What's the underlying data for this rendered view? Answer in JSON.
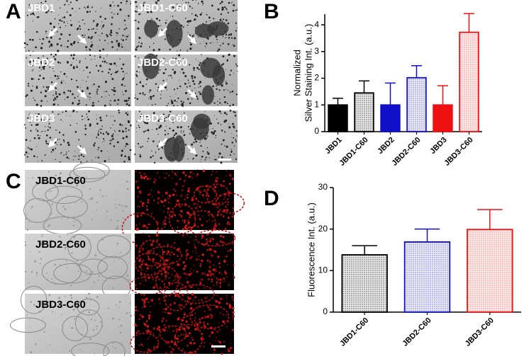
{
  "panel_labels": [
    "A",
    "B",
    "C",
    "D"
  ],
  "panel_a_labels": [
    "JBD1",
    "JBD1-C60",
    "JBD2",
    "JBD2-C60",
    "JBD3",
    "JBD3-C60"
  ],
  "panel_c_labels": [
    "JBD1-C60",
    "JBD2-C60",
    "JBD3-C60"
  ],
  "chart_data": [
    {
      "type": "bar",
      "ylabel": [
        "Normalized",
        "Silver Staining Int. (a.u.)"
      ],
      "categories": [
        "JBD1",
        "JBD1-C60",
        "JBD2",
        "JBD2-C60",
        "JBD3",
        "JBD3-C60"
      ],
      "values": [
        1,
        1.45,
        1,
        2.02,
        1,
        3.72
      ],
      "errors": [
        0.25,
        0.45,
        0.82,
        0.45,
        0.72,
        0.7
      ],
      "colors": [
        "#000000",
        "#000000",
        "#1010c8",
        "#1010c8",
        "#ee1111",
        "#ee1111"
      ],
      "fills": [
        "solid",
        "hatched",
        "solid",
        "hatched",
        "solid",
        "hatched"
      ],
      "ylim": [
        0,
        4.4
      ],
      "yticks": [
        0,
        1,
        2,
        3,
        4
      ]
    },
    {
      "type": "bar",
      "ylabel": [
        "Fluorescence Int. (a.u.)"
      ],
      "categories": [
        "JBD1-C60",
        "JBD2-C60",
        "JBD3-C60"
      ],
      "values": [
        13.8,
        16.9,
        19.9
      ],
      "errors": [
        2.2,
        3.1,
        4.8
      ],
      "colors": [
        "#000000",
        "#1010c8",
        "#ee1111"
      ],
      "fills": [
        "hatched",
        "hatched",
        "hatched"
      ],
      "ylim": [
        0,
        30
      ],
      "yticks": [
        0,
        10,
        20,
        30
      ]
    }
  ]
}
